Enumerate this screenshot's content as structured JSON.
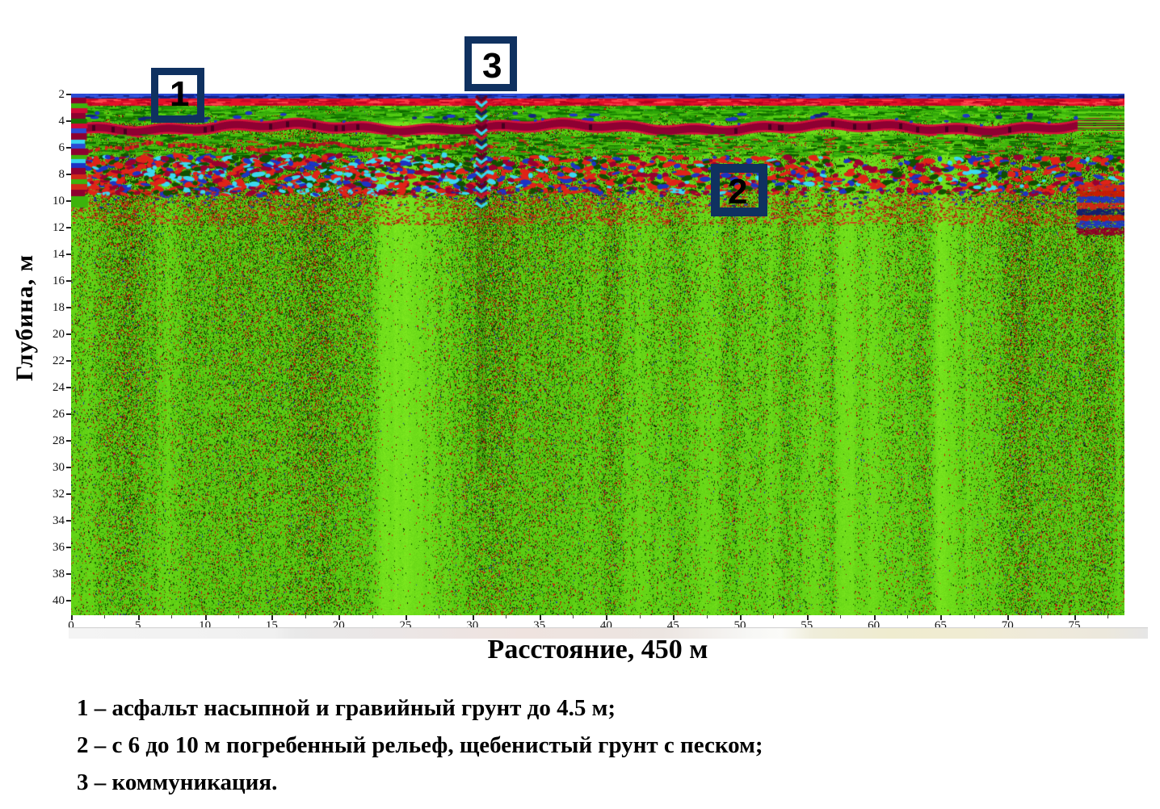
{
  "figure": {
    "y_axis": {
      "label": "Глубина, м",
      "ticks": [
        2,
        4,
        6,
        8,
        10,
        12,
        14,
        16,
        18,
        20,
        22,
        24,
        26,
        28,
        30,
        32,
        34,
        36,
        38,
        40
      ]
    },
    "x_axis": {
      "label": "Расстояние, 450 м",
      "ticks": [
        0,
        5,
        10,
        15,
        20,
        25,
        30,
        35,
        40,
        45,
        50,
        55,
        60,
        65,
        70,
        75
      ]
    },
    "markers": [
      {
        "label": "1"
      },
      {
        "label": "2"
      },
      {
        "label": "3"
      }
    ]
  },
  "legend": {
    "items": [
      {
        "text": "1 – асфальт насыпной и гравийный грунт до 4.5 м;"
      },
      {
        "text": "2 – с 6 до 10 м погребенный рельеф, щебенистый грунт с песком;"
      },
      {
        "text": "3 – коммуникация."
      }
    ]
  },
  "colors": {
    "marker_box": "#0f3160",
    "radar_green": "#5ecf10",
    "radar_dark_green": "#176e02",
    "radar_red": "#e41228",
    "radar_crimson": "#8e0032",
    "radar_blue": "#2a4ad4",
    "radar_cyan": "#38d4ee"
  },
  "chart_data": {
    "type": "heatmap",
    "title": "",
    "xlabel": "Расстояние, 450 м",
    "ylabel": "Глубина, м",
    "x_range_m": [
      0,
      79
    ],
    "depth_range_m": [
      2,
      41
    ],
    "x_ticks": [
      0,
      5,
      10,
      15,
      20,
      25,
      30,
      35,
      40,
      45,
      50,
      55,
      60,
      65,
      70,
      75
    ],
    "y_ticks": [
      2,
      4,
      6,
      8,
      10,
      12,
      14,
      16,
      18,
      20,
      22,
      24,
      26,
      28,
      30,
      32,
      34,
      36,
      38,
      40
    ],
    "profile_length_m": 450,
    "grid": false,
    "legend_position": "below",
    "annotations": [
      {
        "id": "1",
        "x_m": [
          6.1,
          10.1
        ],
        "depth_m": [
          2.0,
          3.9
        ],
        "meaning": "асфальт насыпной и гравийный грунт до 4.5 м"
      },
      {
        "id": "2",
        "x_m": [
          48.0,
          52.1
        ],
        "depth_m": [
          7.2,
          11.1
        ],
        "meaning": "с 6 до 10 м погребенный рельеф, щебенистый грунт с песком"
      },
      {
        "id": "3",
        "x_m": [
          29.5,
          33.4
        ],
        "depth_m": [
          2.0,
          2.0
        ],
        "meaning": "коммуникация",
        "anomaly_x_m": 30.7,
        "anomaly_depth_m": [
          2,
          10
        ]
      }
    ],
    "layers": [
      {
        "depth_m": [
          2,
          4.5
        ],
        "description": "асфальт насыпной и гравийный грунт (синие/красные горизонтальные отражения)"
      },
      {
        "depth_m": [
          6,
          10
        ],
        "description": "погребенный рельеф, щебенистый грунт с песком (пятнистые красно-синие отражения)"
      },
      {
        "depth_m": [
          10,
          41
        ],
        "description": "однородная зелёная шумовая зона с вертикальными полосами"
      }
    ]
  }
}
